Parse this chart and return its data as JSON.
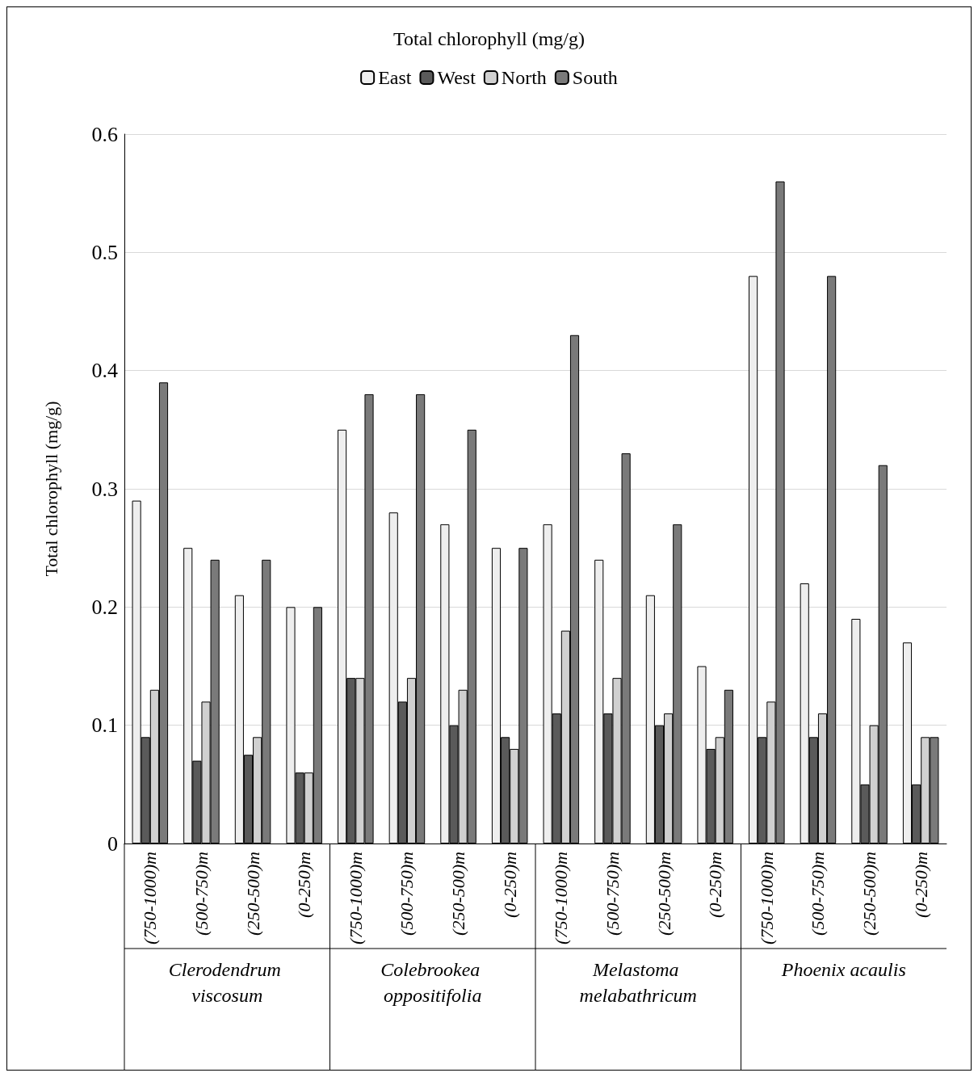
{
  "chart_data": {
    "type": "bar",
    "title": "Total chlorophyll (mg/g)",
    "ylabel": "Total chlorophyll (mg/g)",
    "categories": [
      "(750-1000)m",
      "(500-750)m",
      "(250-500)m",
      "(0-250)m",
      "(750-1000)m",
      "(500-750)m",
      "(250-500)m",
      "(0-250)m",
      "(750-1000)m",
      "(500-750)m",
      "(250-500)m",
      "(0-250)m",
      "(750-1000)m",
      "(500-750)m",
      "(250-500)m",
      "(0-250)m"
    ],
    "series": [
      {
        "name": "East",
        "color": "#eeeeee",
        "values": [
          0.29,
          0.25,
          0.21,
          0.2,
          0.35,
          0.28,
          0.27,
          0.25,
          0.27,
          0.24,
          0.21,
          0.15,
          0.48,
          0.22,
          0.19,
          0.17
        ]
      },
      {
        "name": "West",
        "color": "#5a5a5a",
        "values": [
          0.09,
          0.07,
          0.075,
          0.06,
          0.14,
          0.12,
          0.1,
          0.09,
          0.11,
          0.11,
          0.1,
          0.08,
          0.09,
          0.09,
          0.05,
          0.05
        ]
      },
      {
        "name": "North",
        "color": "#d0d0d0",
        "values": [
          0.13,
          0.12,
          0.09,
          0.06,
          0.14,
          0.14,
          0.13,
          0.08,
          0.18,
          0.14,
          0.11,
          0.09,
          0.12,
          0.11,
          0.1,
          0.09
        ]
      },
      {
        "name": "South",
        "color": "#7a7a7a",
        "values": [
          0.39,
          0.24,
          0.24,
          0.2,
          0.38,
          0.38,
          0.35,
          0.25,
          0.43,
          0.33,
          0.27,
          0.13,
          0.56,
          0.48,
          0.32,
          0.09
        ]
      }
    ],
    "ylim": [
      0,
      0.6
    ],
    "yticks": [
      0,
      0.1,
      0.2,
      0.3,
      0.4,
      0.5,
      0.6
    ],
    "grid": "y",
    "legend": "top",
    "annotations": [
      "Clerodendrum viscosum",
      "Colebrookea oppositifolia",
      "Melastoma melabathricum",
      "Phoenix acaulis"
    ]
  }
}
